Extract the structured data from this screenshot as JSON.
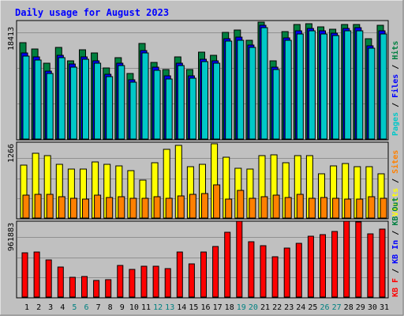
{
  "title": "Daily usage for August 2023",
  "colors": {
    "background": "#c0c0c0",
    "panel": "#b8b8b8",
    "title": "#0000ff",
    "pages": "#00c8c8",
    "files": "#0000ff",
    "hits": "#008040",
    "visits": "#ffff00",
    "sites": "#ff8000",
    "kb_in": "#0000ff",
    "kb_out": "#008040",
    "kb_f": "#ff0000",
    "day_weekend": "#008080",
    "day_weekday": "#000000"
  },
  "legend_sep": " / ",
  "chart_data": [
    {
      "type": "bar",
      "panel": "top",
      "max_label": "18413",
      "ylim": [
        0,
        18413
      ],
      "grid": true,
      "legend": [
        "Pages",
        "Files",
        "Hits"
      ],
      "categories": [
        "1",
        "2",
        "3",
        "4",
        "5",
        "6",
        "7",
        "8",
        "9",
        "10",
        "11",
        "12",
        "13",
        "14",
        "15",
        "16",
        "17",
        "18",
        "19",
        "20",
        "21",
        "22",
        "23",
        "24",
        "25",
        "26",
        "27",
        "28",
        "29",
        "30",
        "31"
      ],
      "series": [
        {
          "name": "Hits",
          "values": [
            15200,
            14200,
            12000,
            14400,
            12300,
            14000,
            13500,
            11200,
            12800,
            10300,
            15100,
            12100,
            11000,
            13000,
            11000,
            13700,
            13200,
            16800,
            17200,
            15500,
            18400,
            12300,
            16900,
            18000,
            18200,
            17700,
            17300,
            18100,
            18000,
            15800,
            17900
          ]
        },
        {
          "name": "Files",
          "values": [
            13500,
            12900,
            10700,
            13200,
            11800,
            13000,
            12300,
            10200,
            12000,
            9300,
            13900,
            11300,
            9900,
            12000,
            10000,
            12600,
            12300,
            15800,
            16000,
            14800,
            17900,
            11300,
            15900,
            17000,
            17400,
            17000,
            16700,
            17400,
            17500,
            14700,
            17000
          ]
        },
        {
          "name": "Pages",
          "values": [
            13100,
            12500,
            10300,
            12800,
            11300,
            12600,
            11900,
            9800,
            11600,
            8900,
            13500,
            10800,
            9400,
            11600,
            9600,
            12200,
            11900,
            15400,
            15600,
            14400,
            17500,
            10900,
            15500,
            16600,
            17000,
            16600,
            16300,
            17000,
            17100,
            14300,
            16600
          ]
        }
      ]
    },
    {
      "type": "bar",
      "panel": "middle",
      "max_label": "1266",
      "ylim": [
        0,
        1266
      ],
      "grid": true,
      "legend": [
        "Visits",
        "Sites"
      ],
      "categories": [
        "1",
        "2",
        "3",
        "4",
        "5",
        "6",
        "7",
        "8",
        "9",
        "10",
        "11",
        "12",
        "13",
        "14",
        "15",
        "16",
        "17",
        "18",
        "19",
        "20",
        "21",
        "22",
        "23",
        "24",
        "25",
        "26",
        "27",
        "28",
        "29",
        "30",
        "31"
      ],
      "series": [
        {
          "name": "Visits",
          "values": [
            900,
            1100,
            1060,
            920,
            840,
            840,
            950,
            910,
            890,
            810,
            640,
            940,
            1170,
            1240,
            870,
            910,
            1270,
            1040,
            850,
            830,
            1060,
            1080,
            940,
            1060,
            1060,
            760,
            890,
            930,
            870,
            870,
            760
          ]
        },
        {
          "name": "Sites",
          "values": [
            390,
            400,
            410,
            360,
            330,
            320,
            390,
            350,
            370,
            340,
            340,
            360,
            340,
            380,
            410,
            420,
            560,
            320,
            470,
            330,
            370,
            390,
            350,
            410,
            330,
            350,
            340,
            320,
            320,
            360,
            330
          ]
        }
      ]
    },
    {
      "type": "bar",
      "panel": "bottom",
      "max_label": "961883",
      "ylim": [
        0,
        961883
      ],
      "grid": true,
      "legend": [
        "KB F",
        "KB In",
        "KB Out"
      ],
      "categories": [
        "1",
        "2",
        "3",
        "4",
        "5",
        "6",
        "7",
        "8",
        "9",
        "10",
        "11",
        "12",
        "13",
        "14",
        "15",
        "16",
        "17",
        "18",
        "19",
        "20",
        "21",
        "22",
        "23",
        "24",
        "25",
        "26",
        "27",
        "28",
        "29",
        "30",
        "31"
      ],
      "series": [
        {
          "name": "KB F",
          "values": [
            570000,
            580000,
            480000,
            390000,
            260000,
            270000,
            220000,
            230000,
            410000,
            360000,
            400000,
            400000,
            370000,
            580000,
            430000,
            580000,
            660000,
            840000,
            980000,
            720000,
            670000,
            520000,
            630000,
            700000,
            790000,
            810000,
            850000,
            980000,
            970000,
            820000,
            880000
          ]
        }
      ]
    }
  ],
  "weekend_days": [
    5,
    6,
    12,
    13,
    19,
    20,
    26,
    27
  ]
}
